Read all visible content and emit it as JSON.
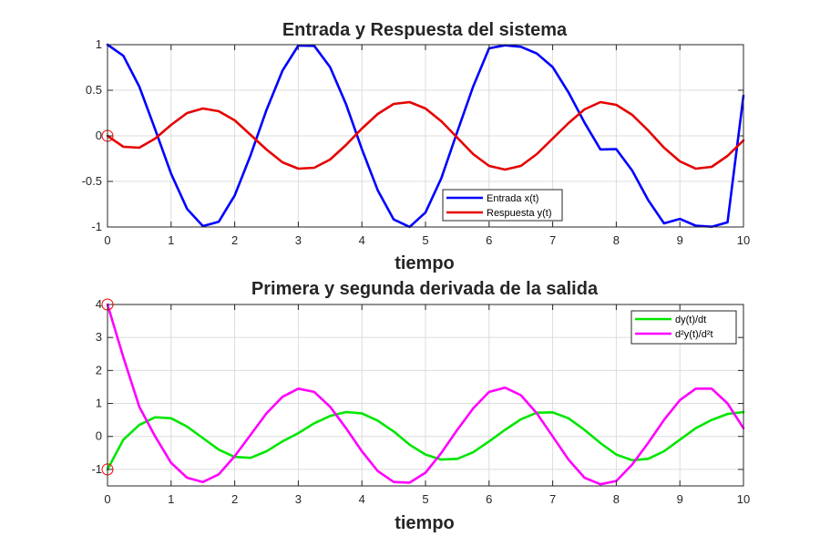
{
  "chart_data": [
    {
      "type": "line",
      "title": "Entrada y Respuesta del sistema",
      "xlabel": "tiempo",
      "ylabel": "",
      "xlim": [
        0,
        10
      ],
      "ylim": [
        -1,
        1
      ],
      "xticks": [
        0,
        1,
        2,
        3,
        4,
        5,
        6,
        7,
        8,
        9,
        10
      ],
      "xtick_labels": [
        "0",
        "1",
        "2",
        "3",
        "4",
        "5",
        "6",
        "7",
        "8",
        "9",
        "10"
      ],
      "yticks": [
        -1,
        -0.5,
        0,
        0.5,
        1
      ],
      "ytick_labels": [
        "-1",
        "-0.5",
        "0",
        "0.5",
        "1"
      ],
      "grid": true,
      "legend_position": "bottom-right",
      "x": [
        0,
        0.25,
        0.5,
        0.75,
        1,
        1.25,
        1.5,
        1.75,
        2,
        2.25,
        2.5,
        2.75,
        3,
        3.25,
        3.5,
        3.75,
        4,
        4.25,
        4.5,
        4.75,
        5,
        5.25,
        5.5,
        5.75,
        6,
        6.25,
        6.5,
        6.75,
        7,
        7.25,
        7.5,
        7.75,
        8,
        8.25,
        8.5,
        8.75,
        9,
        9.25,
        9.5,
        9.75,
        10
      ],
      "series": [
        {
          "name": "Entrada x(t)",
          "color": "#0000ff",
          "values": [
            1,
            0.878,
            0.54,
            0.071,
            -0.416,
            -0.801,
            -0.99,
            -0.942,
            -0.654,
            -0.211,
            0.284,
            0.714,
            0.99,
            0.987,
            0.754,
            0.347,
            -0.146,
            -0.597,
            -0.917,
            -0.999,
            -0.841,
            -0.464,
            0.045,
            0.54,
            0.96,
            0.993,
            0.977,
            0.903,
            0.754,
            0.476,
            0.146,
            -0.149,
            -0.146,
            -0.381,
            -0.703,
            -0.96,
            -0.911,
            -0.986,
            -0.997,
            -0.949,
            0.44
          ]
        },
        {
          "name": "Respuesta y(t)",
          "color": "#e60000",
          "values": [
            0,
            -0.12,
            -0.13,
            -0.03,
            0.12,
            0.25,
            0.3,
            0.27,
            0.17,
            0.01,
            -0.15,
            -0.29,
            -0.36,
            -0.35,
            -0.26,
            -0.1,
            0.08,
            0.24,
            0.35,
            0.37,
            0.3,
            0.16,
            -0.02,
            -0.2,
            -0.33,
            -0.37,
            -0.33,
            -0.2,
            -0.03,
            0.14,
            0.29,
            0.37,
            0.34,
            0.23,
            0.06,
            -0.13,
            -0.28,
            -0.36,
            -0.34,
            -0.22,
            -0.05
          ]
        }
      ],
      "markers": [
        {
          "x": 0,
          "y": 0,
          "color": "#ff0000"
        }
      ]
    },
    {
      "type": "line",
      "title": "Primera y segunda derivada de la salida",
      "xlabel": "tiempo",
      "ylabel": "",
      "xlim": [
        0,
        10
      ],
      "ylim": [
        -1.5,
        4
      ],
      "xticks": [
        0,
        1,
        2,
        3,
        4,
        5,
        6,
        7,
        8,
        9,
        10
      ],
      "xtick_labels": [
        "0",
        "1",
        "2",
        "3",
        "4",
        "5",
        "6",
        "7",
        "8",
        "9",
        "10"
      ],
      "yticks": [
        -1,
        0,
        1,
        2,
        3,
        4
      ],
      "ytick_labels": [
        "-1",
        "0",
        "1",
        "2",
        "3",
        "4"
      ],
      "grid": true,
      "legend_position": "top-right",
      "x": [
        0,
        0.25,
        0.5,
        0.75,
        1,
        1.25,
        1.5,
        1.75,
        2,
        2.25,
        2.5,
        2.75,
        3,
        3.25,
        3.5,
        3.75,
        4,
        4.25,
        4.5,
        4.75,
        5,
        5.25,
        5.5,
        5.75,
        6,
        6.25,
        6.5,
        6.75,
        7,
        7.25,
        7.5,
        7.75,
        8,
        8.25,
        8.5,
        8.75,
        9,
        9.25,
        9.5,
        9.75,
        10
      ],
      "series": [
        {
          "name": "dy(t)/dt",
          "color": "#00e600",
          "values": [
            -1,
            -0.1,
            0.35,
            0.58,
            0.55,
            0.3,
            -0.05,
            -0.4,
            -0.62,
            -0.65,
            -0.45,
            -0.15,
            0.1,
            0.4,
            0.62,
            0.74,
            0.7,
            0.48,
            0.15,
            -0.25,
            -0.55,
            -0.7,
            -0.68,
            -0.48,
            -0.15,
            0.2,
            0.52,
            0.72,
            0.73,
            0.55,
            0.2,
            -0.2,
            -0.55,
            -0.72,
            -0.68,
            -0.45,
            -0.1,
            0.25,
            0.5,
            0.68,
            0.74
          ]
        },
        {
          "name": "d²y(t)/d²t",
          "color": "#ff00ff",
          "values": [
            4,
            2.4,
            0.9,
            0.0,
            -0.8,
            -1.25,
            -1.38,
            -1.15,
            -0.6,
            0.05,
            0.7,
            1.2,
            1.45,
            1.35,
            0.9,
            0.25,
            -0.45,
            -1.05,
            -1.38,
            -1.4,
            -1.1,
            -0.5,
            0.2,
            0.85,
            1.35,
            1.48,
            1.25,
            0.7,
            0.0,
            -0.7,
            -1.25,
            -1.45,
            -1.35,
            -0.85,
            -0.2,
            0.5,
            1.1,
            1.45,
            1.45,
            1.0,
            0.25
          ]
        }
      ],
      "markers": [
        {
          "x": 0,
          "y": 4,
          "color": "#ff0000"
        },
        {
          "x": 0,
          "y": -1,
          "color": "#ff0000"
        }
      ]
    }
  ]
}
